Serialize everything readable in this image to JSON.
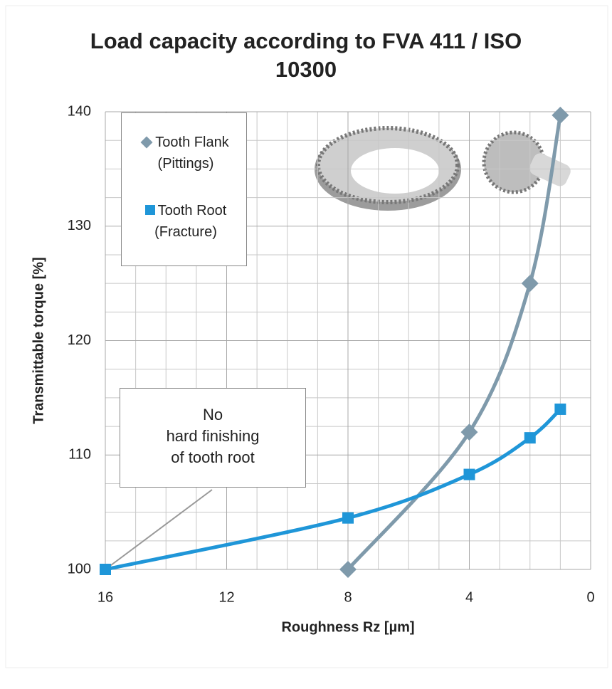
{
  "chart_data": {
    "type": "scatter",
    "title": "Load capacity according to FVA 411 / ISO 10300",
    "x_label": "Roughness Rz [µm]",
    "y_label": "Transmittable torque [%]",
    "xlim": [
      16,
      0
    ],
    "ylim": [
      100,
      140
    ],
    "xticks": [
      16,
      12,
      8,
      4,
      0
    ],
    "yticks": [
      100,
      110,
      120,
      130,
      140
    ],
    "minor_xticks": [
      15,
      14,
      13,
      11,
      10,
      9,
      7,
      6,
      5,
      3,
      2,
      1
    ],
    "minor_yticks": [
      102.5,
      105,
      107.5,
      112.5,
      115,
      117.5,
      122.5,
      125,
      127.5,
      132.5,
      135,
      137.5
    ],
    "grid": true,
    "legend": "upper left",
    "series": [
      {
        "name": "Tooth Flank (Pittings)",
        "color": "#7f9aab",
        "marker": "diamond",
        "x": [
          8,
          4,
          2,
          1
        ],
        "values": [
          100,
          112,
          125,
          139.7
        ]
      },
      {
        "name": "Tooth Root (Fracture)",
        "color": "#1f96d8",
        "marker": "square",
        "x": [
          16,
          8,
          4,
          2,
          1
        ],
        "values": [
          100,
          104.5,
          108.3,
          111.5,
          114
        ]
      }
    ],
    "annotation": [
      "No",
      "hard finishing",
      "of tooth root"
    ]
  }
}
